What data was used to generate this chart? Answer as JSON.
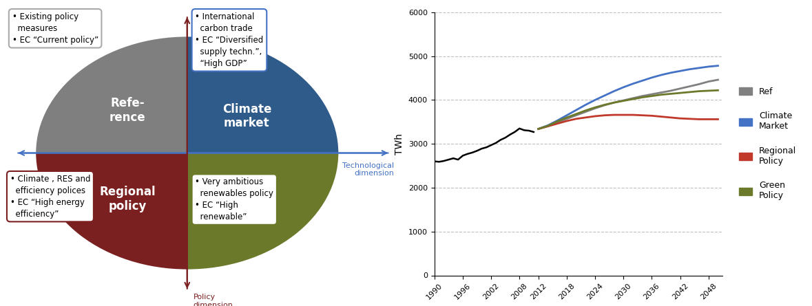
{
  "left": {
    "quadrant_colors": {
      "reference": "#7F7F7F",
      "climate_market": "#2E5B8A",
      "regional_policy": "#7B2020",
      "green_policy": "#6B7A2A"
    },
    "box_texts": {
      "top_left": "• Existing policy\n  measures\n• EC “Current policy”",
      "top_right": "• International\n  carbon trade\n• EC “Diversified\n  supply techn.”,\n  “High GDP”",
      "bottom_left": "• Climate , RES and\n  efficiency polices\n• EC “High energy\n  efficiency”",
      "bottom_right": "• Very ambitious\n  renewables policy\n• EC “High\n  renewable”"
    },
    "box_edge_colors": {
      "top_left": "#AAAAAA",
      "top_right": "#4472C4",
      "bottom_left": "#7B2020",
      "bottom_right": "#6B7A2A"
    },
    "axis_color_h": "#4472C4",
    "axis_color_v": "#7B2020",
    "axis_label_color_h": "#4472C4",
    "axis_label_color_v": "#7B2020"
  },
  "right": {
    "x_historical": [
      1990,
      1991,
      1992,
      1993,
      1994,
      1995,
      1996,
      1997,
      1998,
      1999,
      2000,
      2001,
      2002,
      2003,
      2004,
      2005,
      2006,
      2007,
      2008,
      2009,
      2010,
      2011
    ],
    "y_historical": [
      2600,
      2590,
      2610,
      2640,
      2670,
      2640,
      2730,
      2770,
      2800,
      2840,
      2890,
      2920,
      2970,
      3020,
      3090,
      3140,
      3210,
      3270,
      3350,
      3310,
      3300,
      3270
    ],
    "x_future": [
      2012,
      2014,
      2016,
      2018,
      2020,
      2022,
      2024,
      2026,
      2028,
      2030,
      2032,
      2034,
      2036,
      2038,
      2040,
      2042,
      2044,
      2046,
      2048,
      2050
    ],
    "y_ref": [
      3340,
      3400,
      3480,
      3570,
      3650,
      3730,
      3810,
      3880,
      3940,
      3990,
      4040,
      4090,
      4130,
      4170,
      4210,
      4260,
      4310,
      4360,
      4420,
      4460
    ],
    "y_climate_market": [
      3340,
      3420,
      3530,
      3650,
      3770,
      3890,
      4000,
      4100,
      4200,
      4290,
      4370,
      4440,
      4510,
      4570,
      4620,
      4660,
      4700,
      4730,
      4760,
      4780
    ],
    "y_regional_policy": [
      3340,
      3400,
      3460,
      3520,
      3570,
      3600,
      3630,
      3650,
      3660,
      3660,
      3660,
      3650,
      3640,
      3620,
      3600,
      3580,
      3570,
      3560,
      3560,
      3560
    ],
    "y_green_policy": [
      3340,
      3410,
      3510,
      3600,
      3680,
      3760,
      3830,
      3890,
      3940,
      3980,
      4020,
      4060,
      4090,
      4120,
      4140,
      4160,
      4180,
      4200,
      4210,
      4220
    ],
    "colors": {
      "historical": "#000000",
      "ref": "#808080",
      "climate_market": "#4472C4",
      "regional_policy": "#C0392B",
      "green_policy": "#6B7A2A"
    },
    "ylabel": "TWh",
    "ylim": [
      0,
      6000
    ],
    "yticks": [
      0,
      1000,
      2000,
      3000,
      4000,
      5000,
      6000
    ],
    "xticks": [
      1990,
      1996,
      2002,
      2008,
      2012,
      2018,
      2024,
      2030,
      2036,
      2042,
      2048
    ],
    "legend_labels": [
      "Ref",
      "Climate\nMarket",
      "Regional\nPolicy",
      "Green\nPolicy"
    ],
    "legend_colors": [
      "#808080",
      "#4472C4",
      "#C0392B",
      "#6B7A2A"
    ]
  }
}
